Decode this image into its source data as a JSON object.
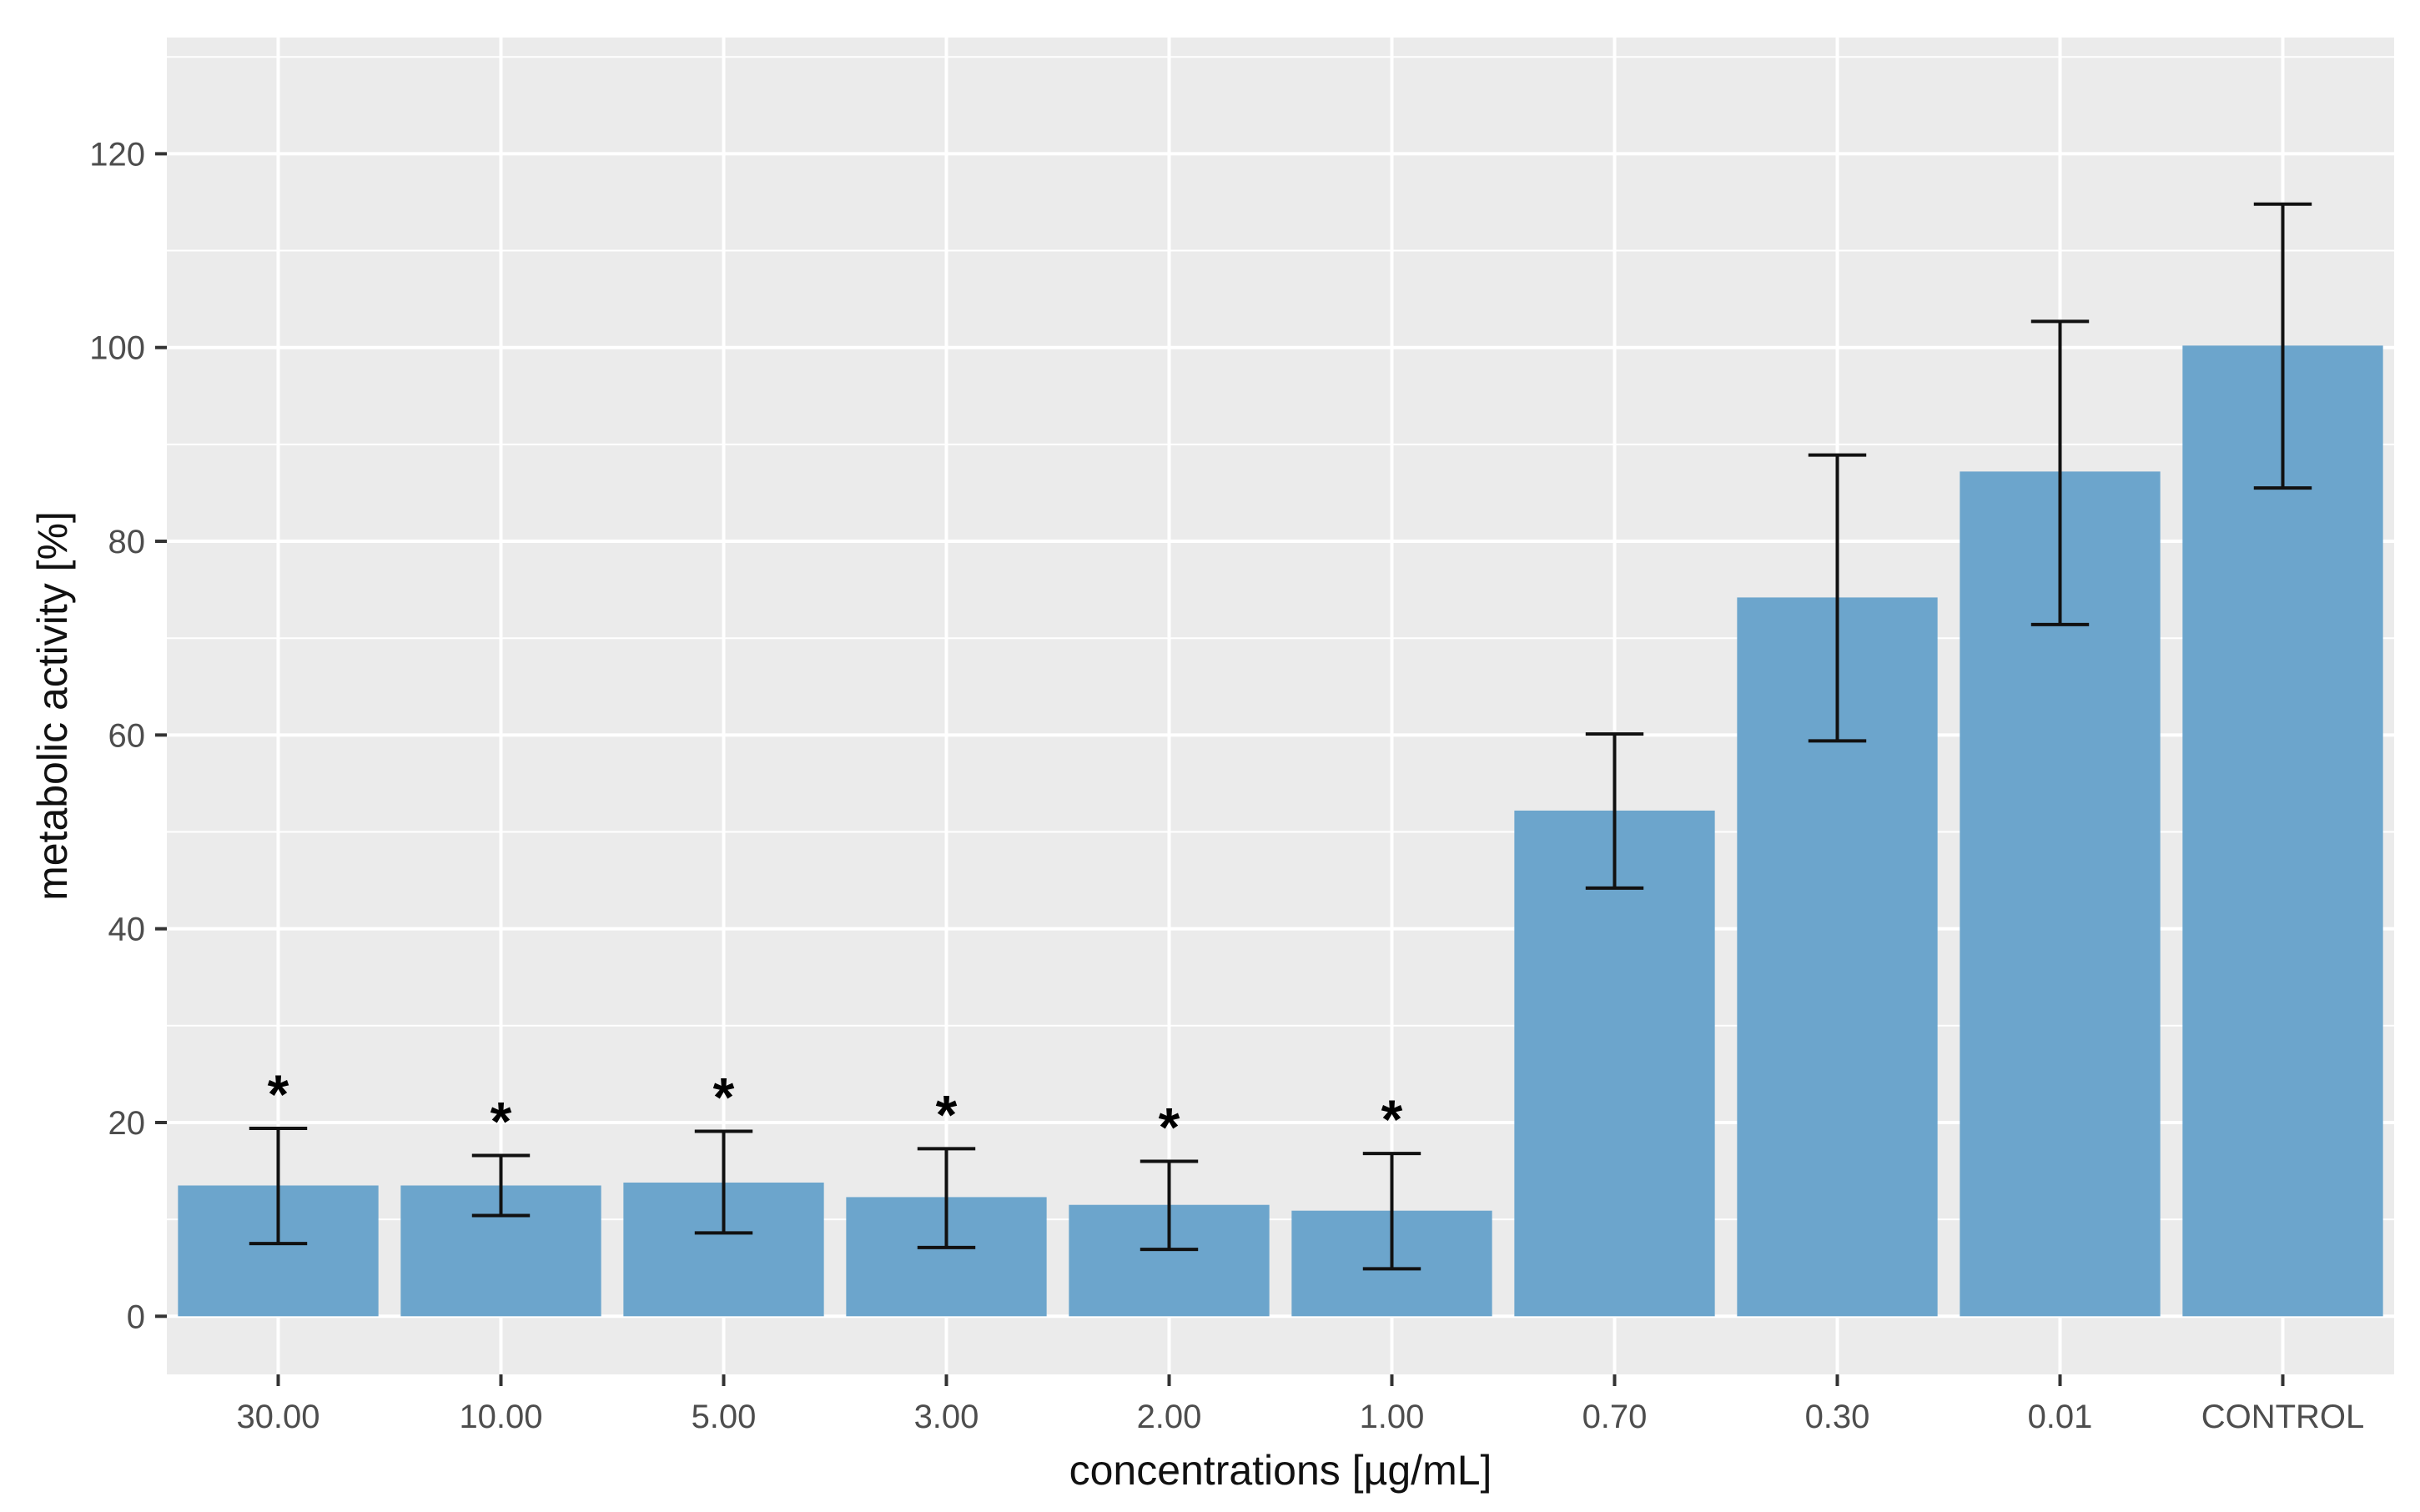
{
  "chart_data": {
    "type": "bar",
    "title": "",
    "xlabel": "concentrations [µg/mL]",
    "ylabel": "metabolic activity [%]",
    "categories": [
      "30.00",
      "10.00",
      "5.00",
      "3.00",
      "2.00",
      "1.00",
      "0.70",
      "0.30",
      "0.01",
      "CONTROL"
    ],
    "values": [
      13.5,
      13.5,
      13.8,
      12.3,
      11.5,
      10.9,
      52.2,
      74.2,
      87.2,
      100.2
    ],
    "error_low": [
      7.5,
      10.4,
      8.6,
      7.1,
      6.9,
      4.9,
      44.2,
      59.4,
      71.4,
      85.5
    ],
    "error_high": [
      19.4,
      16.6,
      19.1,
      17.3,
      16.0,
      16.8,
      60.1,
      88.9,
      102.7,
      114.8
    ],
    "significance": [
      "*",
      "*",
      "*",
      "*",
      "*",
      "*",
      "",
      "",
      "",
      ""
    ],
    "ylim": [
      -6,
      132
    ],
    "yticks": [
      0,
      20,
      40,
      60,
      80,
      100,
      120
    ],
    "ytick_labels": [
      "0",
      "20",
      "40",
      "60",
      "80",
      "100",
      "120"
    ],
    "grid": true,
    "legend": "none",
    "colors": {
      "bar": "#6ca5cc",
      "panel": "#ebebeb",
      "grid": "#ffffff",
      "error_bar": "#111111",
      "text": "#4d4d4d",
      "axis_title": "#111111"
    }
  }
}
